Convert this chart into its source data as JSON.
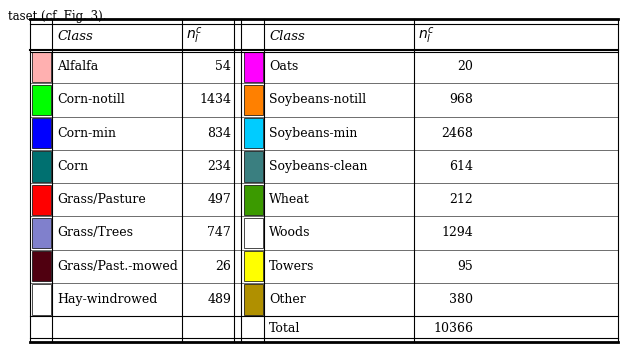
{
  "title_text": "taset (cf. Fig. 3).",
  "left_classes": [
    "Alfalfa",
    "Corn-notill",
    "Corn-min",
    "Corn",
    "Grass/Pasture",
    "Grass/Trees",
    "Grass/Past.-mowed",
    "Hay-windrowed"
  ],
  "left_values": [
    "54",
    "1434",
    "834",
    "234",
    "497",
    "747",
    "26",
    "489"
  ],
  "left_colors": [
    "#FFB0B0",
    "#00FF00",
    "#0000FF",
    "#007070",
    "#FF0000",
    "#8080CC",
    "#500010",
    "#FFFFFF"
  ],
  "right_classes": [
    "Oats",
    "Soybeans-notill",
    "Soybeans-min",
    "Soybeans-clean",
    "Wheat",
    "Woods",
    "Towers",
    "Other"
  ],
  "right_values": [
    "20",
    "968",
    "2468",
    "614",
    "212",
    "1294",
    "95",
    "380"
  ],
  "right_colors": [
    "#FF00FF",
    "#FF8000",
    "#00CCFF",
    "#3A7F80",
    "#3B9A00",
    "#FFFFFF",
    "#FFFF00",
    "#B09000"
  ],
  "total_value": "10366",
  "bg_color": "#FFFFFF",
  "figsize": [
    6.26,
    3.52
  ],
  "dpi": 100
}
